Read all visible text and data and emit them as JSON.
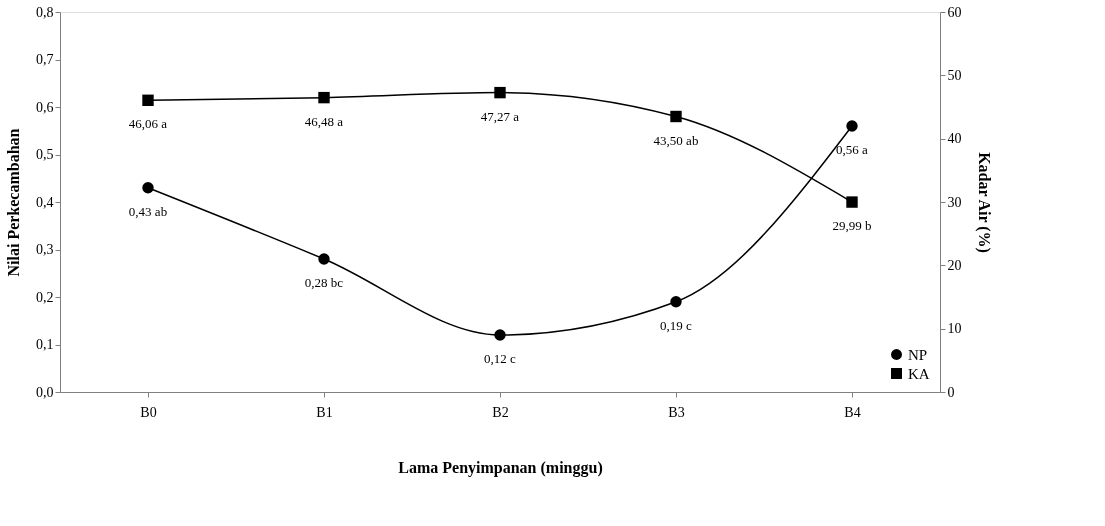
{
  "chart_data": {
    "type": "line",
    "xlabel": "Lama Penyimpanan (minggu)",
    "ylabel": "Nilai  Perkecambahan",
    "y2label": "Kadar Air (%)",
    "categories": [
      "B0",
      "B1",
      "B2",
      "B3",
      "B4"
    ],
    "series": [
      {
        "name": "NP",
        "color": "#000000",
        "marker": "circle",
        "values": [
          0.43,
          0.28,
          0.12,
          0.19,
          0.56
        ],
        "value_labels": [
          "0,43 ab",
          "0,28 bc",
          "0,12 c",
          "0,19 c",
          "0,56 a"
        ]
      },
      {
        "name": "KA",
        "color": "#000000",
        "marker": "square",
        "axis": "y2",
        "values": [
          46.06,
          46.48,
          47.27,
          43.5,
          29.99
        ],
        "value_labels": [
          "46,06 a",
          "46,48 a",
          "47,27 a",
          "43,50 ab",
          "29,99 b"
        ]
      }
    ],
    "ylim": [
      0,
      0.8
    ],
    "yticks": [
      {
        "value": 0,
        "label": "0,0"
      },
      {
        "value": 0.1,
        "label": "0,1"
      },
      {
        "value": 0.2,
        "label": "0,2"
      },
      {
        "value": 0.3,
        "label": "0,3"
      },
      {
        "value": 0.4,
        "label": "0,4"
      },
      {
        "value": 0.5,
        "label": "0,5"
      },
      {
        "value": 0.6,
        "label": "0,6"
      },
      {
        "value": 0.7,
        "label": "0,7"
      },
      {
        "value": 0.8,
        "label": "0,8"
      }
    ],
    "y2lim": [
      0,
      60
    ],
    "y2ticks": [
      0,
      10,
      20,
      30,
      40,
      50,
      60
    ],
    "legend": "bottom right",
    "grid": false,
    "line_style": "solid"
  }
}
